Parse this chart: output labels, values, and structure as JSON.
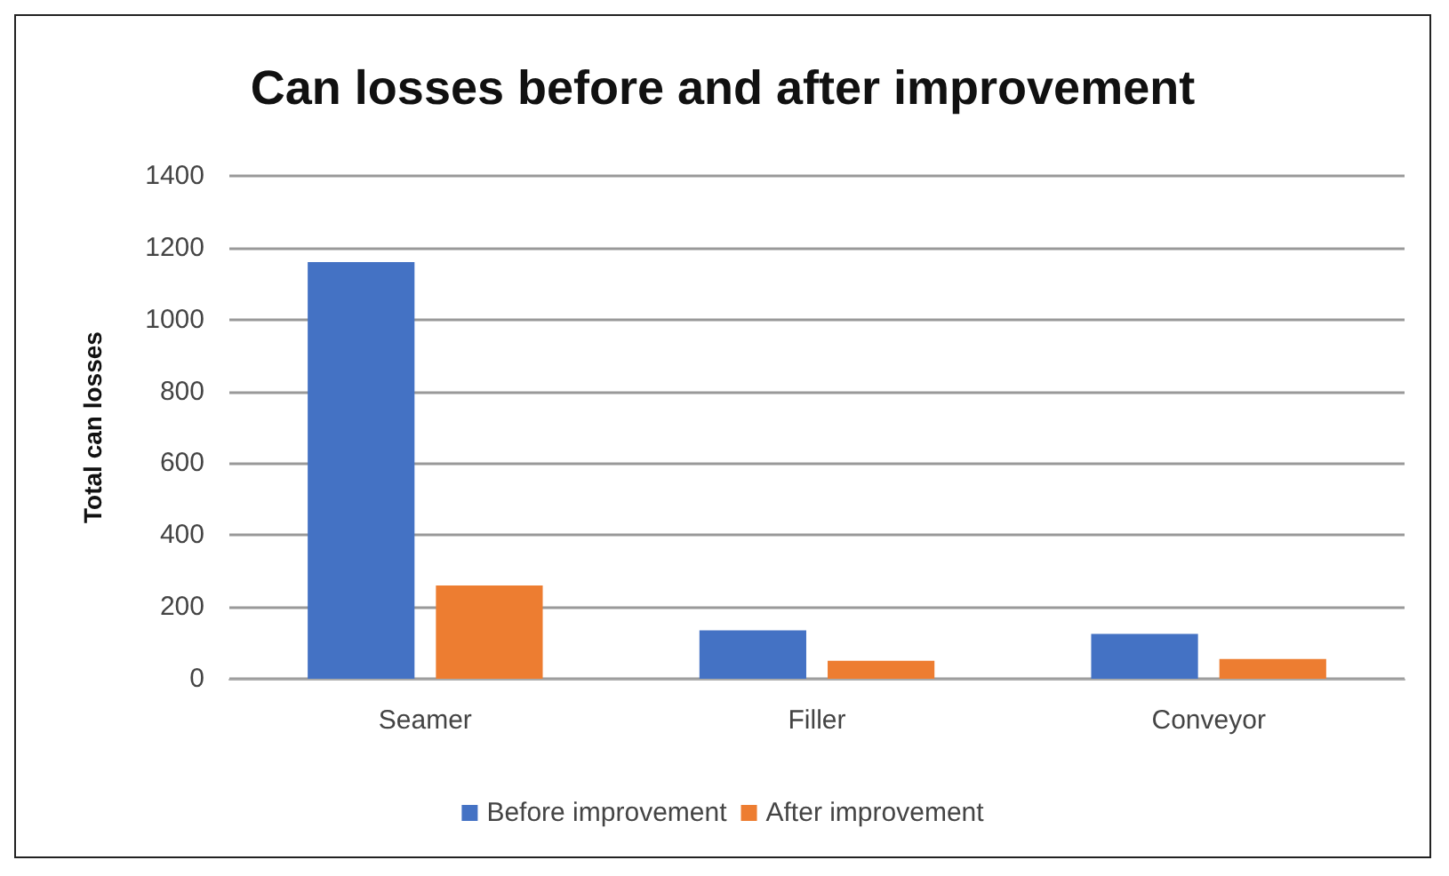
{
  "chart_data": {
    "type": "bar",
    "title": "Can losses before and after improvement",
    "ylabel": "Total can losses",
    "categories": [
      "Seamer",
      "Filler",
      "Conveyor"
    ],
    "series": [
      {
        "name": "Before improvement",
        "color": "#4472c4",
        "values": [
          1160,
          135,
          125
        ]
      },
      {
        "name": "After improvement",
        "color": "#ed7d31",
        "values": [
          260,
          50,
          55
        ]
      }
    ],
    "ylim": [
      0,
      1400
    ],
    "yticks": [
      0,
      200,
      400,
      600,
      800,
      1000,
      1200,
      1400
    ],
    "grid": "y",
    "legend": "bottom"
  }
}
